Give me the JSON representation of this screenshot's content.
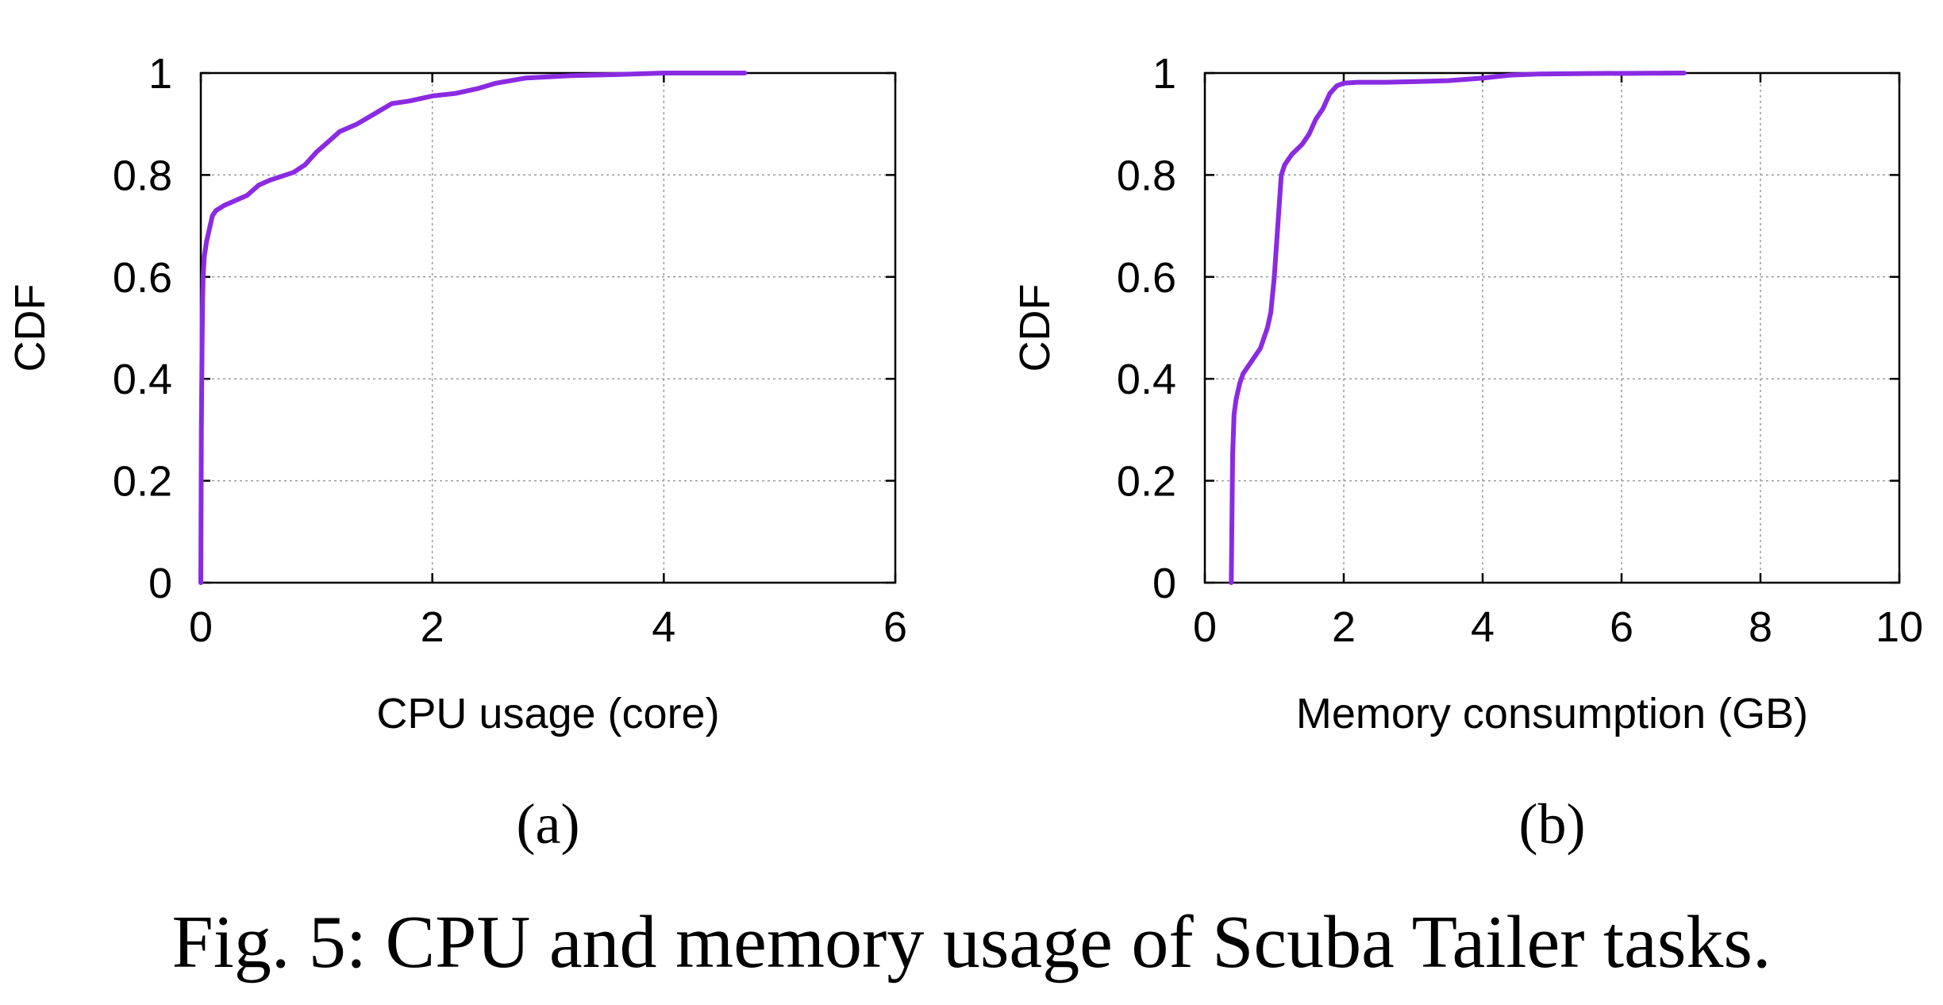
{
  "chart_data": [
    {
      "type": "line",
      "xlabel": "CPU usage (core)",
      "ylabel": "CDF",
      "xlim": [
        0,
        6
      ],
      "ylim": [
        0,
        1
      ],
      "xticks": [
        "0",
        "2",
        "4",
        "6"
      ],
      "yticks": [
        "0",
        "0.2",
        "0.4",
        "0.6",
        "0.8",
        "1"
      ],
      "grid": true,
      "sub_caption": "(a)",
      "series": [
        {
          "color": "#8a2be2",
          "x": [
            0,
            0.005,
            0.01,
            0.015,
            0.02,
            0.03,
            0.05,
            0.08,
            0.1,
            0.13,
            0.2,
            0.3,
            0.4,
            0.5,
            0.6,
            0.8,
            0.9,
            1.0,
            1.1,
            1.2,
            1.35,
            1.5,
            1.65,
            1.8,
            2.0,
            2.2,
            2.4,
            2.55,
            2.8,
            3.2,
            3.6,
            4.0,
            4.3,
            4.7
          ],
          "y": [
            0,
            0.3,
            0.45,
            0.55,
            0.6,
            0.64,
            0.67,
            0.7,
            0.72,
            0.73,
            0.74,
            0.75,
            0.76,
            0.78,
            0.79,
            0.805,
            0.82,
            0.845,
            0.865,
            0.885,
            0.9,
            0.92,
            0.94,
            0.945,
            0.955,
            0.96,
            0.97,
            0.98,
            0.99,
            0.995,
            0.997,
            1.0,
            1.0,
            1.0
          ]
        }
      ]
    },
    {
      "type": "line",
      "xlabel": "Memory consumption (GB)",
      "ylabel": "CDF",
      "xlim": [
        0,
        10
      ],
      "ylim": [
        0,
        1
      ],
      "xticks": [
        "0",
        "2",
        "4",
        "6",
        "8",
        "10"
      ],
      "yticks": [
        "0",
        "0.2",
        "0.4",
        "0.6",
        "0.8",
        "1"
      ],
      "grid": true,
      "sub_caption": "(b)",
      "series": [
        {
          "color": "#8a2be2",
          "x": [
            0.38,
            0.4,
            0.42,
            0.45,
            0.5,
            0.55,
            0.6,
            0.7,
            0.8,
            0.9,
            0.95,
            1.0,
            1.05,
            1.1,
            1.15,
            1.25,
            1.4,
            1.5,
            1.6,
            1.7,
            1.8,
            1.9,
            2.0,
            2.2,
            2.6,
            3.0,
            3.5,
            4.0,
            4.4,
            4.8,
            5.5,
            6.9
          ],
          "y": [
            0,
            0.25,
            0.33,
            0.36,
            0.39,
            0.41,
            0.42,
            0.44,
            0.46,
            0.5,
            0.53,
            0.6,
            0.7,
            0.8,
            0.82,
            0.84,
            0.86,
            0.88,
            0.91,
            0.93,
            0.96,
            0.975,
            0.98,
            0.982,
            0.982,
            0.983,
            0.985,
            0.99,
            0.996,
            0.998,
            0.999,
            1.0
          ]
        }
      ]
    }
  ],
  "caption": "Fig. 5: CPU and memory usage of Scuba Tailer tasks."
}
